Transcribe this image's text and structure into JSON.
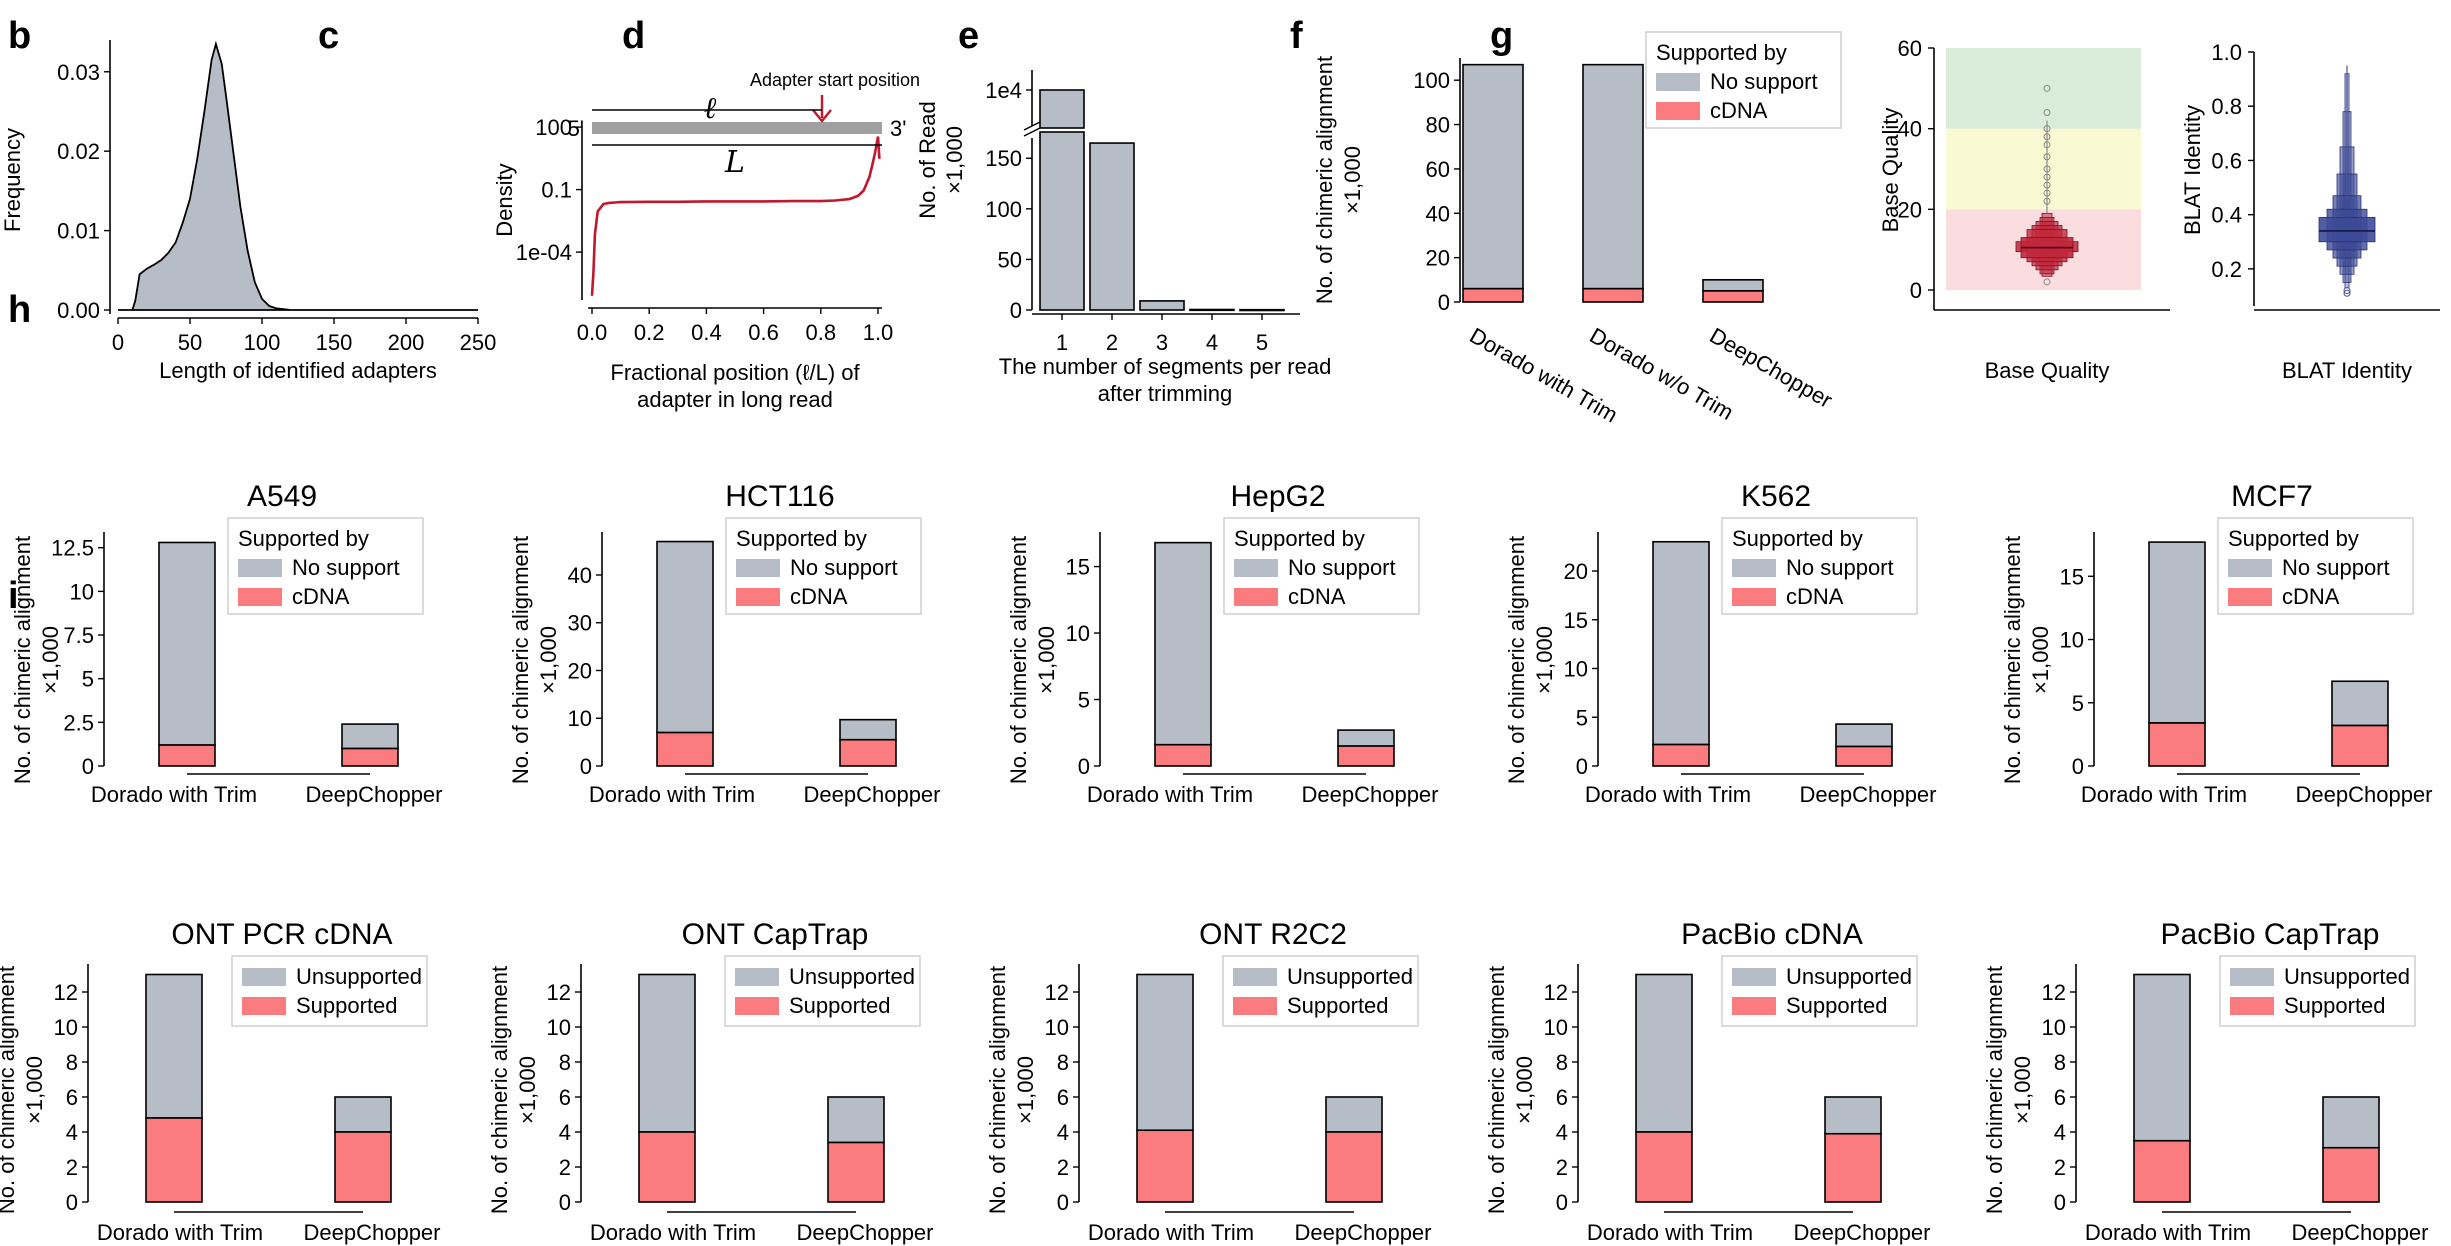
{
  "panels": {
    "b": "b",
    "c": "c",
    "d": "d",
    "e": "e",
    "f": "f",
    "g": "g",
    "h": "h",
    "i": "i"
  },
  "colors": {
    "gray": "#b7bdc6",
    "red": "#fa7c7e",
    "curve": "#c0182c",
    "boxRed": "#c0283c",
    "boxBlue": "#3c4a96",
    "bandGreen": "#d9ecd9",
    "bandYellow": "#fafad2",
    "bandPink": "#fbdde0"
  },
  "chart_data": [
    {
      "id": "b",
      "type": "area",
      "xlabel": "Length of identified adapters",
      "ylabel": "Frequency",
      "xticks": [
        "0",
        "50",
        "100",
        "150",
        "200",
        "250"
      ],
      "yticks": [
        "0.00",
        "0.01",
        "0.02",
        "0.03"
      ],
      "xlim": [
        0,
        250
      ],
      "ylim": [
        0,
        0.034
      ],
      "x": [
        0,
        5,
        10,
        12,
        15,
        20,
        25,
        30,
        35,
        40,
        45,
        50,
        55,
        60,
        65,
        68,
        72,
        75,
        80,
        85,
        90,
        95,
        100,
        105,
        110,
        115,
        120,
        130,
        140,
        150,
        160,
        180,
        200,
        220,
        250
      ],
      "y": [
        0,
        0,
        0,
        0.0012,
        0.0045,
        0.0052,
        0.0057,
        0.0063,
        0.0072,
        0.0085,
        0.011,
        0.014,
        0.019,
        0.025,
        0.0315,
        0.0335,
        0.031,
        0.027,
        0.02,
        0.013,
        0.0075,
        0.0035,
        0.0014,
        0.0005,
        0.0002,
        0.0001,
        0,
        0,
        0,
        0,
        0,
        0,
        0,
        0,
        0
      ]
    },
    {
      "id": "c",
      "type": "line",
      "xlabel_line1": "Fractional position (ℓ/L) of",
      "xlabel_line2": "adapter in long read",
      "ylabel": "Density",
      "xticks": [
        "0.0",
        "0.2",
        "0.4",
        "0.6",
        "0.8",
        "1.0"
      ],
      "yticks": [
        "100",
        "0.1",
        "1e-04"
      ],
      "log_y": true,
      "x": [
        0,
        0.005,
        0.01,
        0.02,
        0.04,
        0.06,
        0.08,
        0.1,
        0.2,
        0.3,
        0.4,
        0.5,
        0.6,
        0.7,
        0.8,
        0.85,
        0.9,
        0.93,
        0.95,
        0.97,
        0.98,
        0.99,
        1.0,
        1.005
      ],
      "y": [
        8e-07,
        1e-05,
        0.0007,
        0.009,
        0.02,
        0.023,
        0.024,
        0.025,
        0.026,
        0.026,
        0.027,
        0.027,
        0.027,
        0.028,
        0.028,
        0.03,
        0.035,
        0.05,
        0.09,
        0.4,
        1.5,
        6,
        35,
        3
      ],
      "annotation": "Adapter start position",
      "diagram_ell": "ℓ",
      "diagram_L": "L",
      "five_prime": "5'",
      "three_prime": "3'"
    },
    {
      "id": "d",
      "type": "bar",
      "categories": [
        "1",
        "2",
        "3",
        "4",
        "5"
      ],
      "values": [
        175,
        165,
        9,
        0.5,
        0.3
      ],
      "top_break_label": "1e4",
      "xlabel_line1": "The number of segments per read",
      "xlabel_line2": "after trimming",
      "ylabel_line1": "No. of Read",
      "ylabel_line2": "×1,000",
      "yticks": [
        "0",
        "50",
        "100",
        "150"
      ]
    },
    {
      "id": "e",
      "type": "bar",
      "stacked": true,
      "categories": [
        "Dorado with Trim",
        "Dorado w/o Trim",
        "DeepChopper"
      ],
      "series": [
        {
          "name": "cDNA",
          "values": [
            6,
            6,
            5
          ]
        },
        {
          "name": "No support",
          "values": [
            101,
            101,
            5
          ]
        }
      ],
      "legend_title": "Supported by",
      "ylabel_line1": "No. of chimeric alignment",
      "ylabel_line2": "×1,000",
      "yticks": [
        "0",
        "20",
        "40",
        "60",
        "80",
        "100"
      ],
      "ylim": [
        0,
        110
      ]
    },
    {
      "id": "f",
      "type": "box",
      "xlabel": "Base Quality",
      "ylabel": "Base Quality",
      "yticks": [
        "0",
        "20",
        "40",
        "60"
      ],
      "ylim": [
        0,
        60
      ]
    },
    {
      "id": "g",
      "type": "box",
      "xlabel": "BLAT Identity",
      "ylabel": "BLAT Identity",
      "yticks": [
        "0.2",
        "0.4",
        "0.6",
        "0.8",
        "1.0"
      ],
      "ylim": [
        0.1,
        1.0
      ]
    },
    {
      "id": "h_A549",
      "type": "bar",
      "stacked": true,
      "title": "A549",
      "categories": [
        "Dorado with Trim",
        "DeepChopper"
      ],
      "series": [
        {
          "name": "cDNA",
          "values": [
            1.2,
            1.0
          ]
        },
        {
          "name": "No support",
          "values": [
            11.6,
            1.4
          ]
        }
      ],
      "legend_title": "Supported by",
      "yticks": [
        "0",
        "2.5",
        "5",
        "7.5",
        "10",
        "12.5"
      ],
      "ymax": 13.4,
      "ylabel_line1": "No. of chimeric alignment",
      "ylabel_line2": "×1,000"
    },
    {
      "id": "h_HCT116",
      "type": "bar",
      "stacked": true,
      "title": "HCT116",
      "categories": [
        "Dorado with Trim",
        "DeepChopper"
      ],
      "series": [
        {
          "name": "cDNA",
          "values": [
            7.0,
            5.5
          ]
        },
        {
          "name": "No support",
          "values": [
            40,
            4.2
          ]
        }
      ],
      "legend_title": "Supported by",
      "yticks": [
        "0",
        "10",
        "20",
        "30",
        "40"
      ],
      "ymax": 49,
      "ylabel_line1": "No. of chimeric alignment",
      "ylabel_line2": "×1,000"
    },
    {
      "id": "h_HepG2",
      "type": "bar",
      "stacked": true,
      "title": "HepG2",
      "categories": [
        "Dorado with Trim",
        "DeepChopper"
      ],
      "series": [
        {
          "name": "cDNA",
          "values": [
            1.6,
            1.5
          ]
        },
        {
          "name": "No support",
          "values": [
            15.2,
            1.2
          ]
        }
      ],
      "legend_title": "Supported by",
      "yticks": [
        "0",
        "5",
        "10",
        "15"
      ],
      "ymax": 17.6,
      "ylabel_line1": "No. of chimeric alignment",
      "ylabel_line2": "×1,000"
    },
    {
      "id": "h_K562",
      "type": "bar",
      "stacked": true,
      "title": "K562",
      "categories": [
        "Dorado with Trim",
        "DeepChopper"
      ],
      "series": [
        {
          "name": "cDNA",
          "values": [
            2.2,
            2.0
          ]
        },
        {
          "name": "No support",
          "values": [
            20.8,
            2.3
          ]
        }
      ],
      "legend_title": "Supported by",
      "yticks": [
        "0",
        "5",
        "10",
        "15",
        "20"
      ],
      "ymax": 24,
      "ylabel_line1": "No. of chimeric alignment",
      "ylabel_line2": "×1,000"
    },
    {
      "id": "h_MCF7",
      "type": "bar",
      "stacked": true,
      "title": "MCF7",
      "categories": [
        "Dorado with Trim",
        "DeepChopper"
      ],
      "series": [
        {
          "name": "cDNA",
          "values": [
            3.4,
            3.2
          ]
        },
        {
          "name": "No support",
          "values": [
            14.3,
            3.5
          ]
        }
      ],
      "legend_title": "Supported by",
      "yticks": [
        "0",
        "5",
        "10",
        "15"
      ],
      "ymax": 18.5,
      "ylabel_line1": "No. of chimeric alignment",
      "ylabel_line2": "×1,000"
    },
    {
      "id": "i_ONT_PCR_cDNA",
      "type": "bar",
      "stacked": true,
      "title": "ONT PCR cDNA",
      "categories": [
        "Dorado with Trim",
        "DeepChopper"
      ],
      "series": [
        {
          "name": "Supported",
          "values": [
            4.8,
            4.0
          ]
        },
        {
          "name": "Unsupported",
          "values": [
            8.2,
            2.0
          ]
        }
      ],
      "yticks": [
        "0",
        "2",
        "4",
        "6",
        "8",
        "10",
        "12"
      ],
      "ymax": 13.6,
      "ylabel_line1": "No. of chimeric alignment",
      "ylabel_line2": "×1,000"
    },
    {
      "id": "i_ONT_CapTrap",
      "type": "bar",
      "stacked": true,
      "title": "ONT CapTrap",
      "categories": [
        "Dorado with Trim",
        "DeepChopper"
      ],
      "series": [
        {
          "name": "Supported",
          "values": [
            4.0,
            3.4
          ]
        },
        {
          "name": "Unsupported",
          "values": [
            9.0,
            2.6
          ]
        }
      ],
      "yticks": [
        "0",
        "2",
        "4",
        "6",
        "8",
        "10",
        "12"
      ],
      "ymax": 13.6,
      "ylabel_line1": "No. of chimeric alignment",
      "ylabel_line2": "×1,000"
    },
    {
      "id": "i_ONT_R2C2",
      "type": "bar",
      "stacked": true,
      "title": "ONT R2C2",
      "categories": [
        "Dorado with Trim",
        "DeepChopper"
      ],
      "series": [
        {
          "name": "Supported",
          "values": [
            4.1,
            4.0
          ]
        },
        {
          "name": "Unsupported",
          "values": [
            8.9,
            2.0
          ]
        }
      ],
      "yticks": [
        "0",
        "2",
        "4",
        "6",
        "8",
        "10",
        "12"
      ],
      "ymax": 13.6,
      "ylabel_line1": "No. of chimeric alignment",
      "ylabel_line2": "×1,000"
    },
    {
      "id": "i_PacBio_cDNA",
      "type": "bar",
      "stacked": true,
      "title": "PacBio cDNA",
      "categories": [
        "Dorado with Trim",
        "DeepChopper"
      ],
      "series": [
        {
          "name": "Supported",
          "values": [
            4.0,
            3.9
          ]
        },
        {
          "name": "Unsupported",
          "values": [
            9.0,
            2.1
          ]
        }
      ],
      "yticks": [
        "0",
        "2",
        "4",
        "6",
        "8",
        "10",
        "12"
      ],
      "ymax": 13.6,
      "ylabel_line1": "No. of chimeric alignment",
      "ylabel_line2": "×1,000"
    },
    {
      "id": "i_PacBio_CapTrap",
      "type": "bar",
      "stacked": true,
      "title": "PacBio CapTrap",
      "categories": [
        "Dorado with Trim",
        "DeepChopper"
      ],
      "series": [
        {
          "name": "Supported",
          "values": [
            3.5,
            3.1
          ]
        },
        {
          "name": "Unsupported",
          "values": [
            9.5,
            2.9
          ]
        }
      ],
      "yticks": [
        "0",
        "2",
        "4",
        "6",
        "8",
        "10",
        "12"
      ],
      "ymax": 13.6,
      "ylabel_line1": "No. of chimeric alignment",
      "ylabel_line2": "×1,000"
    }
  ]
}
